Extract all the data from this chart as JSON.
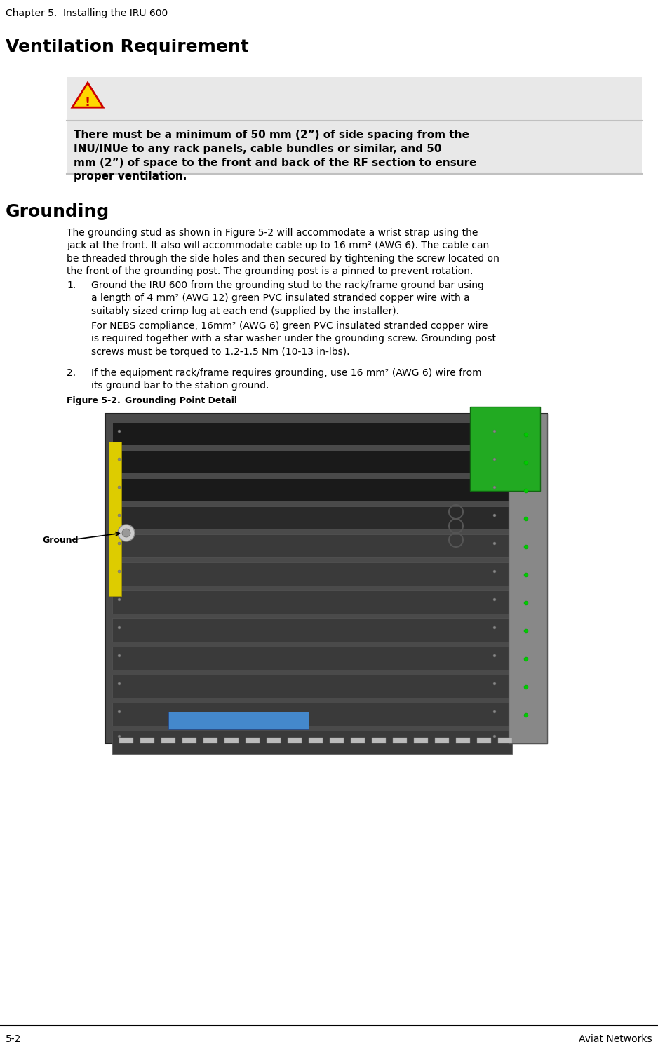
{
  "page_width": 9.38,
  "page_height": 14.86,
  "bg_color": "#ffffff",
  "header_text": "Chapter 5.  Installing the IRU 600",
  "header_fontsize": 10,
  "footer_left": "5-2",
  "footer_right": "Aviat Networks",
  "footer_fontsize": 10,
  "section1_title": "Ventilation Requirement",
  "section1_title_fontsize": 18,
  "warning_box_bg": "#e8e8e8",
  "warning_line_color": "#b0b0b0",
  "warning_text": "There must be a minimum of 50 mm (2”) of side spacing from the INU/INUe to any rack panels, cable bundles or similar, and 50 mm (2”) of space to the front and back of the RF section to ensure proper ventilation.",
  "warning_fontsize": 11,
  "section2_title": "Grounding",
  "section2_title_fontsize": 18,
  "body_fontsize": 10,
  "body_text1": "The grounding stud as shown in Figure 5-2 will accommodate a wrist strap using the\njack at the front. It also will accommodate cable up to 16 mm",
  "body_text1_super": "2",
  "body_text1_rest": " (AWG 6). The cable can\nbe threaded through the side holes and then secured by tightening the screw located on\nthe front of the grounding post. The grounding post is a pinned to prevent rotation.",
  "list_item1_num": "1.",
  "list_item1_text": "Ground the IRU 600 from the grounding stud to the rack/frame ground bar using\na length of 4 mm",
  "list_item1_super": "2",
  "list_item1_rest": " (AWG 12) green PVC insulated stranded copper wire with a\nsuitably sized crimp lug at each end (supplied by the installer).",
  "list_item1_sub": "For NEBS compliance, 16mm",
  "list_item1_sub_super": "2",
  "list_item1_sub_rest": " (AWG 6) green PVC insulated stranded copper wire\nis required together with a star washer under the grounding screw. Grounding post\nscrews must be torqued to 1.2-1.5 Nm (10-13 in-lbs).",
  "list_item2_num": "2.",
  "list_item2_text": "If the equipment rack/frame requires grounding, use 16 mm",
  "list_item2_super": "2",
  "list_item2_rest": " (AWG 6) wire from\nits ground bar to the station ground.",
  "figure_caption": "Figure 5-2. Grounding Point Detail",
  "figure_caption_fontsize": 9,
  "ground_label": "Ground",
  "ground_label_fontsize": 9
}
